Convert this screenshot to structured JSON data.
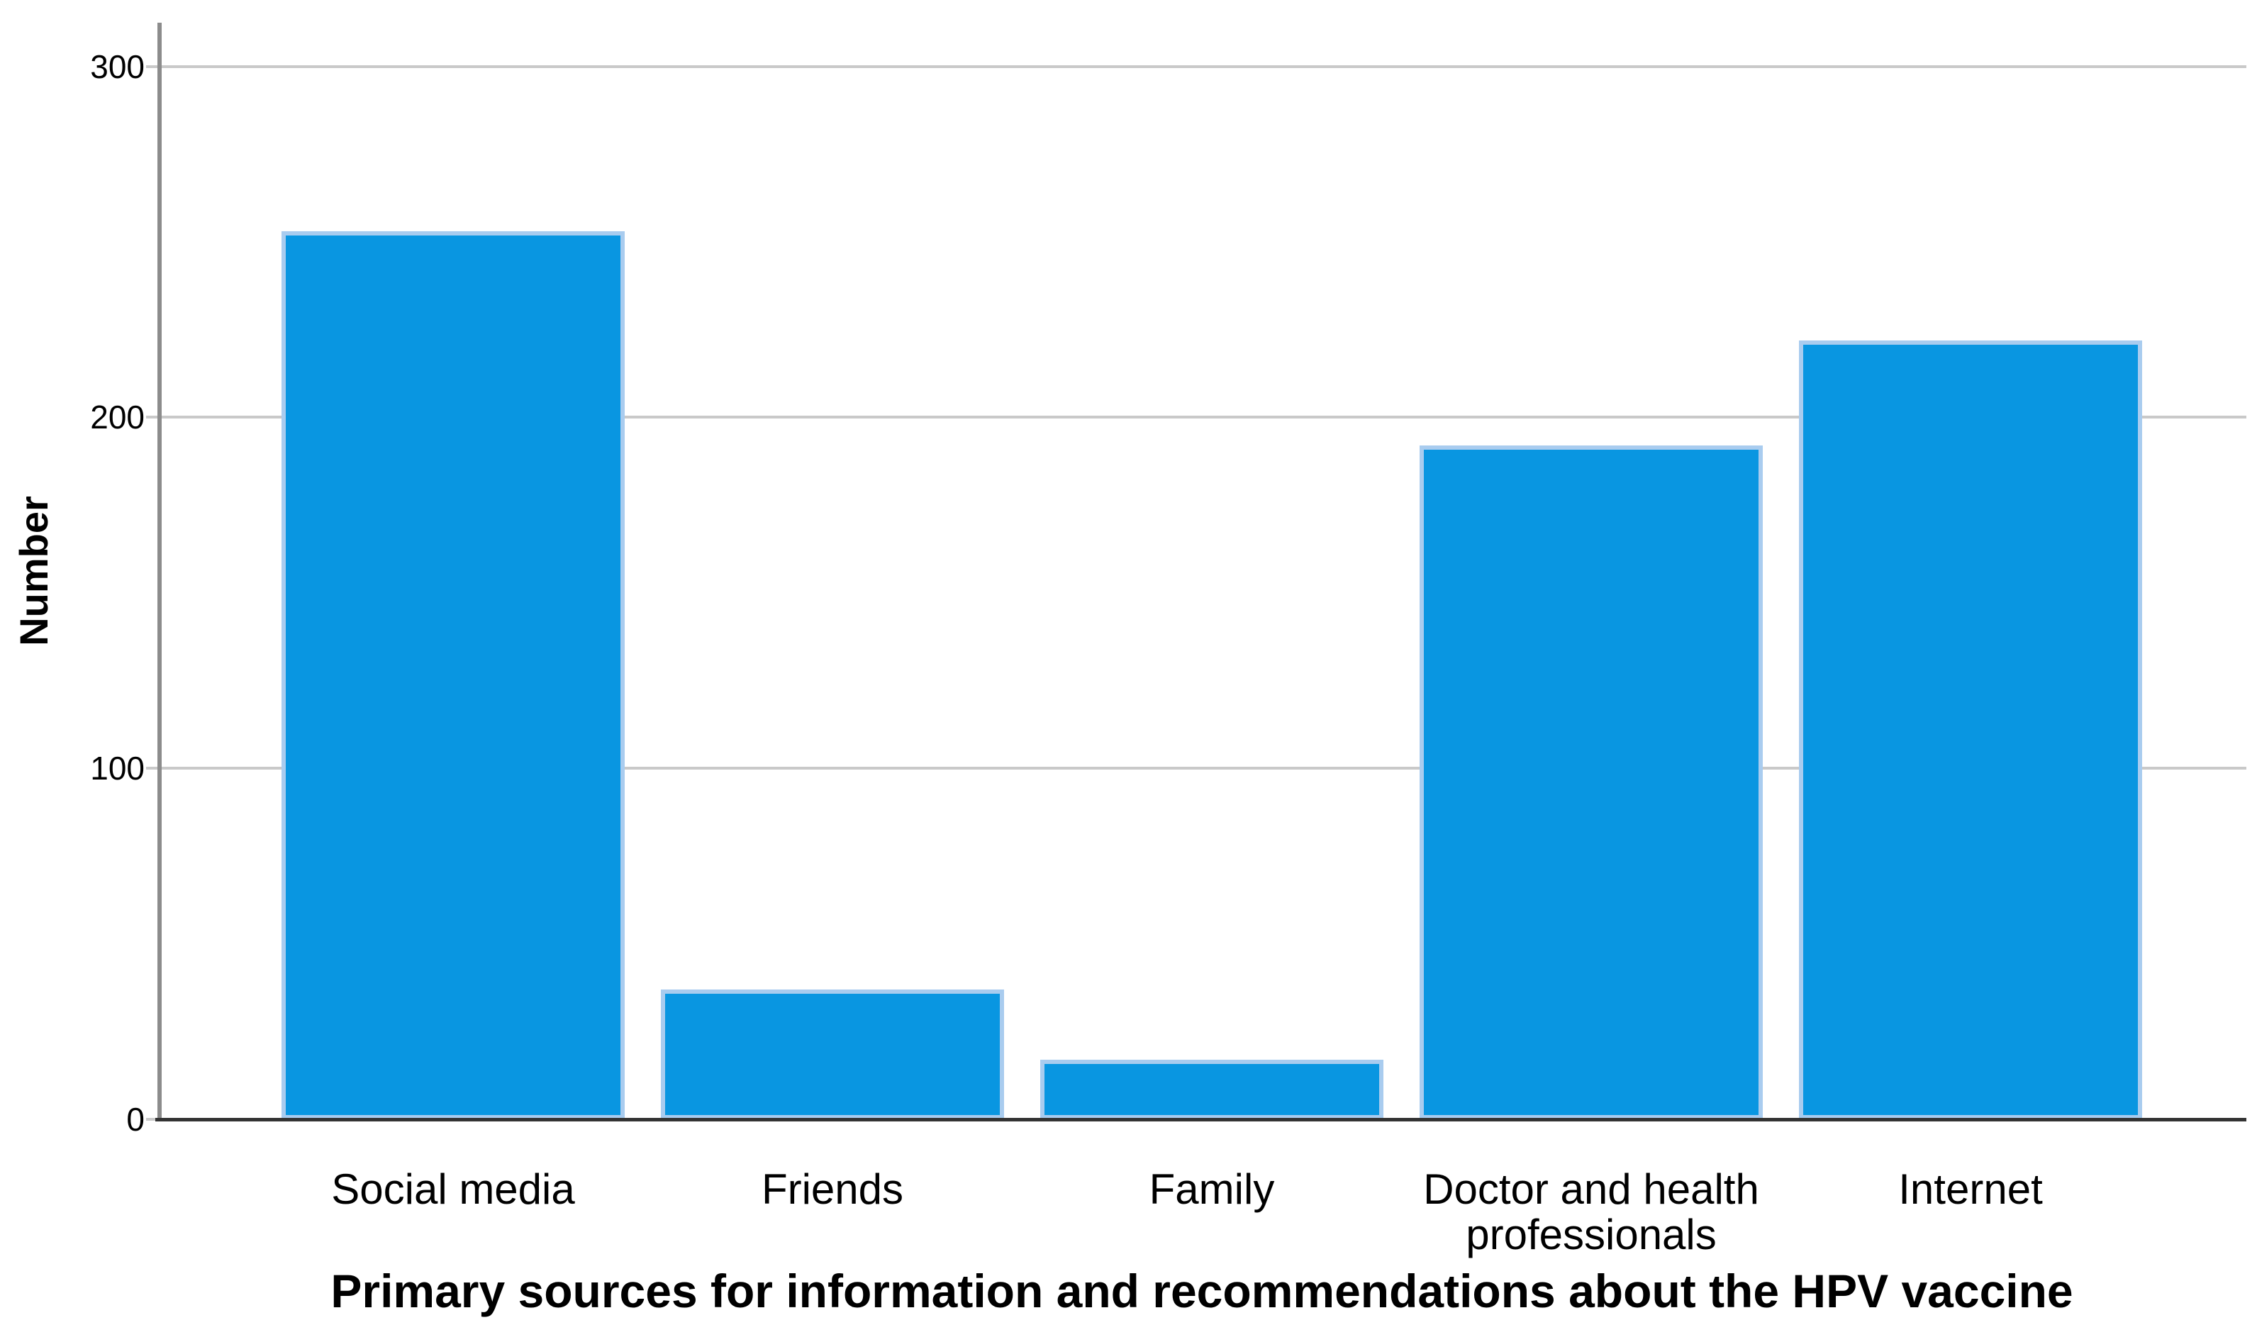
{
  "figure": {
    "background": "#ffffff"
  },
  "chart_data": {
    "type": "bar",
    "title": "",
    "xlabel": "Primary sources for information and recommendations about the HPV vaccine",
    "ylabel": "Number",
    "categories": [
      "Social media",
      "Friends",
      "Family",
      "Doctor and health professionals",
      "Internet"
    ],
    "values": [
      253,
      37,
      17,
      192,
      222
    ],
    "yticks": [
      0,
      100,
      200,
      300
    ],
    "ylim": [
      0,
      312
    ],
    "grid": "horizontal-gridlines",
    "legend": "none",
    "bar_color": "#0996E1",
    "bar_border_color": "#A9CCEF",
    "gridline_color": "#C9C9C9",
    "y_axis_line_color": "#8C8C8C",
    "x_axis_line_color": "#333333",
    "text_color": "#000000"
  }
}
